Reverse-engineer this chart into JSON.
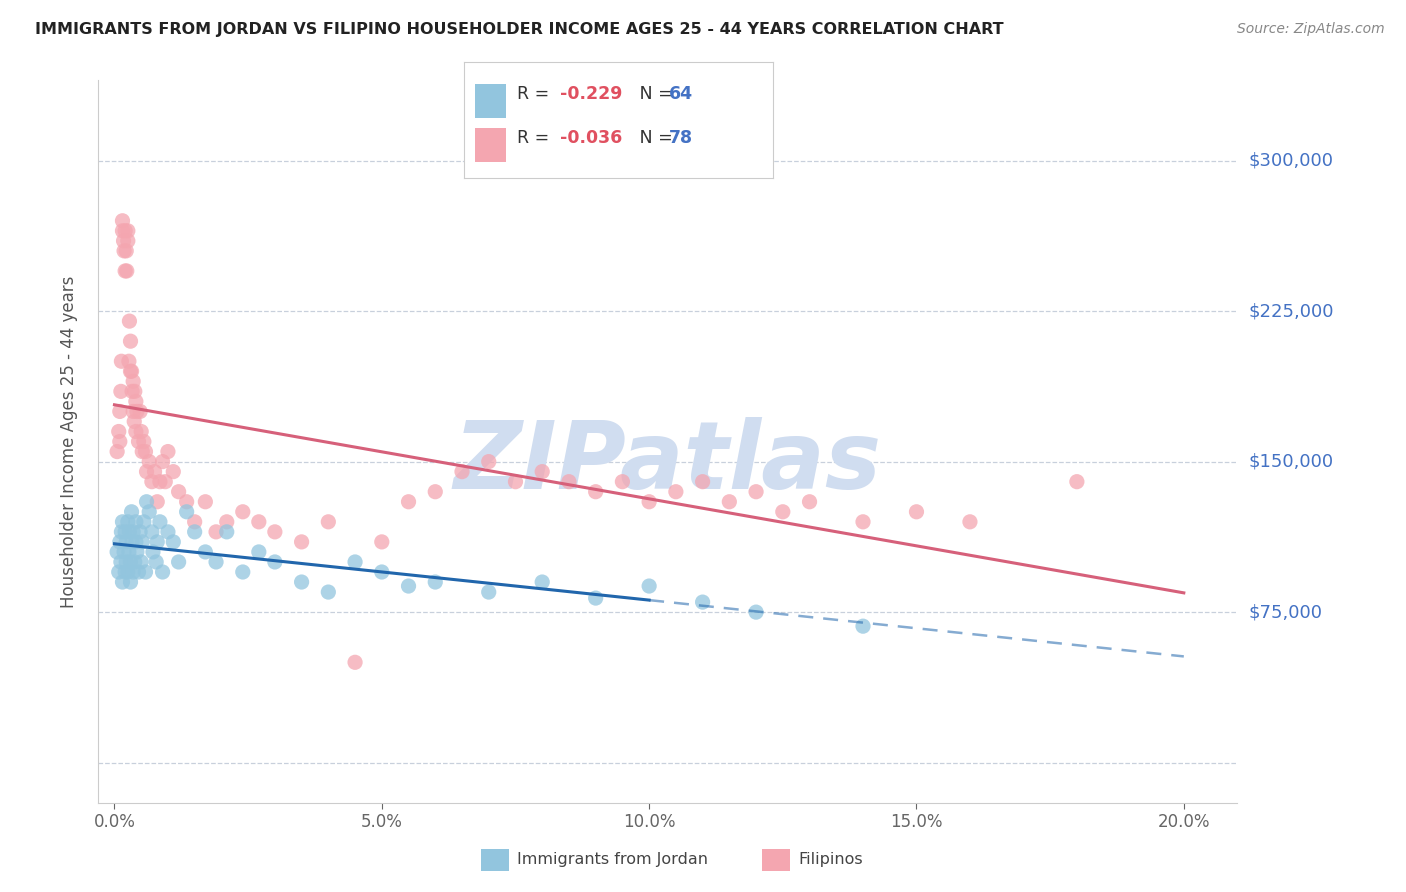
{
  "title": "IMMIGRANTS FROM JORDAN VS FILIPINO HOUSEHOLDER INCOME AGES 25 - 44 YEARS CORRELATION CHART",
  "source": "Source: ZipAtlas.com",
  "ylabel": "Householder Income Ages 25 - 44 years",
  "xlabel_ticks": [
    "0.0%",
    "5.0%",
    "10.0%",
    "15.0%",
    "20.0%"
  ],
  "xlabel_vals": [
    0.0,
    5.0,
    10.0,
    15.0,
    20.0
  ],
  "ytick_vals": [
    0,
    75000,
    150000,
    225000,
    300000
  ],
  "ytick_labels": [
    "",
    "$75,000",
    "$150,000",
    "$225,000",
    "$300,000"
  ],
  "xlim": [
    -0.3,
    21.0
  ],
  "ylim": [
    -20000,
    340000
  ],
  "jordan_color": "#92c5de",
  "filipino_color": "#f4a6b0",
  "jordan_line_color": "#2166ac",
  "filipino_line_color": "#d6607a",
  "grid_color": "#c8d0dc",
  "tick_color": "#4472c4",
  "watermark_color": "#d0ddf0",
  "legend_text_color": "#333333",
  "legend_val_color": "#e05060",
  "legend_n_color": "#4472c4",
  "source_color": "#888888",
  "title_color": "#222222",
  "ylabel_color": "#555555",
  "jordan_x": [
    0.05,
    0.08,
    0.1,
    0.12,
    0.13,
    0.15,
    0.15,
    0.18,
    0.2,
    0.2,
    0.22,
    0.22,
    0.25,
    0.25,
    0.27,
    0.28,
    0.3,
    0.3,
    0.32,
    0.33,
    0.35,
    0.35,
    0.38,
    0.4,
    0.4,
    0.42,
    0.45,
    0.48,
    0.5,
    0.52,
    0.55,
    0.58,
    0.6,
    0.65,
    0.7,
    0.72,
    0.78,
    0.8,
    0.85,
    0.9,
    1.0,
    1.1,
    1.2,
    1.35,
    1.5,
    1.7,
    1.9,
    2.1,
    2.4,
    2.7,
    3.0,
    3.5,
    4.0,
    4.5,
    5.0,
    5.5,
    6.0,
    7.0,
    8.0,
    9.0,
    10.0,
    11.0,
    12.0,
    14.0
  ],
  "jordan_y": [
    105000,
    95000,
    110000,
    100000,
    115000,
    90000,
    120000,
    105000,
    115000,
    95000,
    100000,
    110000,
    120000,
    95000,
    105000,
    115000,
    90000,
    100000,
    125000,
    110000,
    95000,
    115000,
    100000,
    110000,
    120000,
    105000,
    95000,
    115000,
    100000,
    110000,
    120000,
    95000,
    130000,
    125000,
    115000,
    105000,
    100000,
    110000,
    120000,
    95000,
    115000,
    110000,
    100000,
    125000,
    115000,
    105000,
    100000,
    115000,
    95000,
    105000,
    100000,
    90000,
    85000,
    100000,
    95000,
    88000,
    90000,
    85000,
    90000,
    82000,
    88000,
    80000,
    75000,
    68000
  ],
  "filipino_x": [
    0.05,
    0.08,
    0.1,
    0.1,
    0.12,
    0.13,
    0.15,
    0.15,
    0.17,
    0.18,
    0.2,
    0.2,
    0.22,
    0.23,
    0.25,
    0.25,
    0.27,
    0.28,
    0.3,
    0.3,
    0.32,
    0.33,
    0.35,
    0.35,
    0.37,
    0.38,
    0.4,
    0.4,
    0.42,
    0.45,
    0.48,
    0.5,
    0.52,
    0.55,
    0.58,
    0.6,
    0.65,
    0.7,
    0.75,
    0.8,
    0.85,
    0.9,
    0.95,
    1.0,
    1.1,
    1.2,
    1.35,
    1.5,
    1.7,
    1.9,
    2.1,
    2.4,
    2.7,
    3.0,
    3.5,
    4.0,
    4.5,
    5.0,
    5.5,
    6.0,
    6.5,
    7.0,
    7.5,
    8.0,
    8.5,
    9.0,
    9.5,
    10.0,
    10.5,
    11.0,
    11.5,
    12.0,
    12.5,
    13.0,
    14.0,
    15.0,
    16.0,
    18.0
  ],
  "filipino_y": [
    155000,
    165000,
    175000,
    160000,
    185000,
    200000,
    270000,
    265000,
    260000,
    255000,
    265000,
    245000,
    255000,
    245000,
    265000,
    260000,
    200000,
    220000,
    195000,
    210000,
    195000,
    185000,
    175000,
    190000,
    170000,
    185000,
    165000,
    180000,
    175000,
    160000,
    175000,
    165000,
    155000,
    160000,
    155000,
    145000,
    150000,
    140000,
    145000,
    130000,
    140000,
    150000,
    140000,
    155000,
    145000,
    135000,
    130000,
    120000,
    130000,
    115000,
    120000,
    125000,
    120000,
    115000,
    110000,
    120000,
    50000,
    110000,
    130000,
    135000,
    145000,
    150000,
    140000,
    145000,
    140000,
    135000,
    140000,
    130000,
    135000,
    140000,
    130000,
    135000,
    125000,
    130000,
    120000,
    125000,
    120000,
    140000
  ]
}
